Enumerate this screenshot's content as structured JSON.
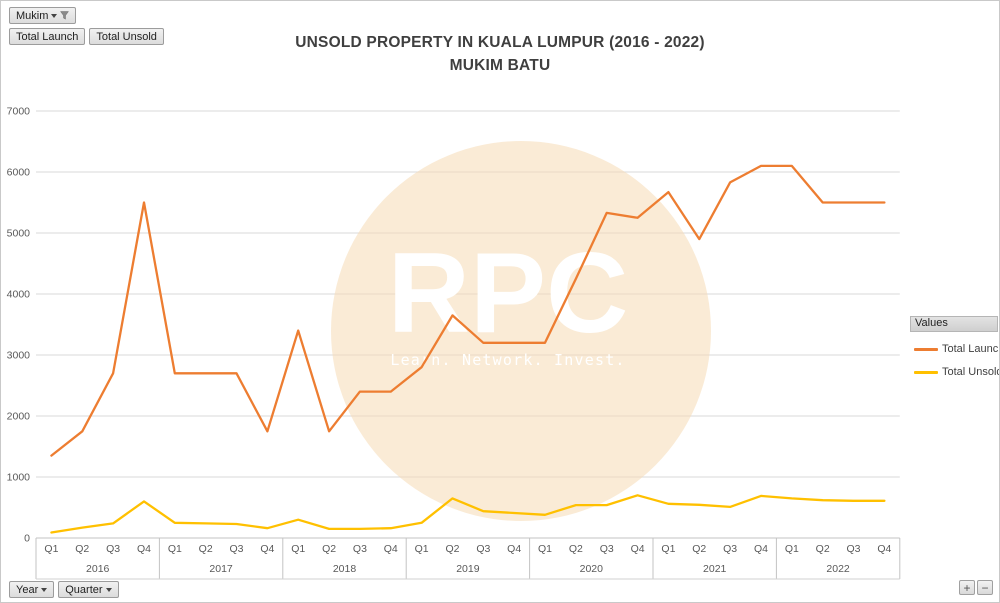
{
  "field_buttons": {
    "filter": "Mukim",
    "series": [
      "Total Launch",
      "Total Unsold"
    ],
    "axis": [
      "Year",
      "Quarter"
    ]
  },
  "legend": {
    "header": "Values"
  },
  "zoom_controls": {
    "plus": "+",
    "minus": "−"
  },
  "watermark": {
    "text": "RPC",
    "tagline": "Learn. Network. Invest.",
    "circle_color": "#FAEDDA"
  },
  "chart_data": {
    "type": "line",
    "title": "UNSOLD PROPERTY IN KUALA LUMPUR (2016 - 2022)",
    "subtitle": "MUKIM BATU",
    "quarter_labels": [
      "Q1",
      "Q2",
      "Q3",
      "Q4"
    ],
    "years": [
      "2016",
      "2017",
      "2018",
      "2019",
      "2020",
      "2021",
      "2022"
    ],
    "ylim": [
      0,
      7000
    ],
    "ytick_step": 1000,
    "grid": true,
    "legend_position": "right",
    "series": [
      {
        "name": "Total Launch",
        "color": "#ED7D31",
        "values": [
          1350,
          1750,
          2700,
          5500,
          2700,
          2700,
          2700,
          1750,
          3400,
          1750,
          2400,
          2400,
          2800,
          3650,
          3200,
          3200,
          3200,
          4250,
          5330,
          5250,
          5670,
          4900,
          5830,
          6100,
          6100,
          5500,
          5500,
          5500
        ]
      },
      {
        "name": "Total Unsold",
        "color": "#FFC000",
        "values": [
          90,
          170,
          240,
          600,
          250,
          240,
          230,
          160,
          300,
          150,
          150,
          160,
          250,
          650,
          440,
          410,
          380,
          540,
          540,
          700,
          560,
          545,
          510,
          690,
          650,
          620,
          610,
          610
        ]
      }
    ]
  }
}
